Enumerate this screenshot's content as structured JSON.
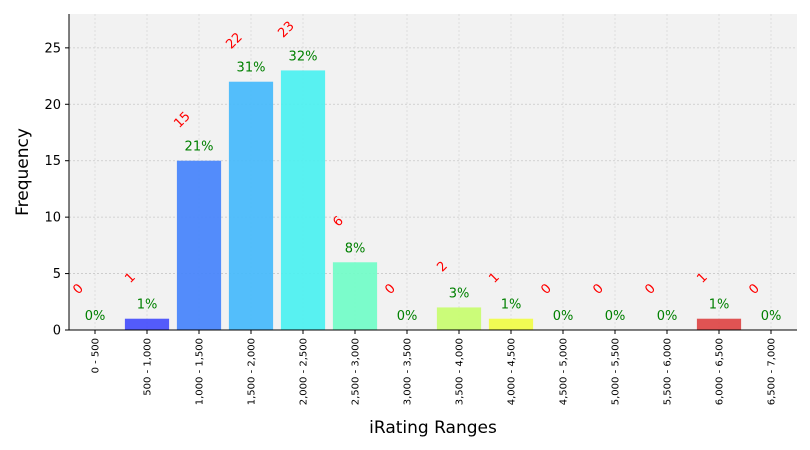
{
  "chart_data": {
    "type": "bar",
    "xlabel": "iRating Ranges",
    "ylabel": "Frequency",
    "ylim": [
      0,
      28
    ],
    "yticks": [
      0,
      5,
      10,
      15,
      20,
      25
    ],
    "grid": true,
    "categories": [
      "0 - 500",
      "500 - 1,000",
      "1,000 - 1,500",
      "1,500 - 2,000",
      "2,000 - 2,500",
      "2,500 - 3,000",
      "3,000 - 3,500",
      "3,500 - 4,000",
      "4,000 - 4,500",
      "4,500 - 5,000",
      "5,000 - 5,500",
      "5,500 - 6,000",
      "6,000 - 6,500",
      "6,500 - 7,000"
    ],
    "values": [
      0,
      1,
      15,
      22,
      23,
      6,
      0,
      2,
      1,
      0,
      0,
      0,
      1,
      0
    ],
    "count_labels": [
      "0",
      "1",
      "15",
      "22",
      "23",
      "6",
      "0",
      "2",
      "1",
      "0",
      "0",
      "0",
      "1",
      "0"
    ],
    "percent_labels": [
      "0%",
      "1%",
      "21%",
      "31%",
      "32%",
      "8%",
      "0%",
      "3%",
      "1%",
      "0%",
      "0%",
      "0%",
      "1%",
      "0%"
    ],
    "colors": [
      "#3b2cf5",
      "#4a52fb",
      "#4a86fb",
      "#4abafb",
      "#4ff0f0",
      "#74fcc8",
      "#9cfca0",
      "#c8fc72",
      "#f0fc4a",
      "#fcc83c",
      "#fc9a3c",
      "#f06a3c",
      "#dd4a4a",
      "#c83c3c"
    ]
  }
}
